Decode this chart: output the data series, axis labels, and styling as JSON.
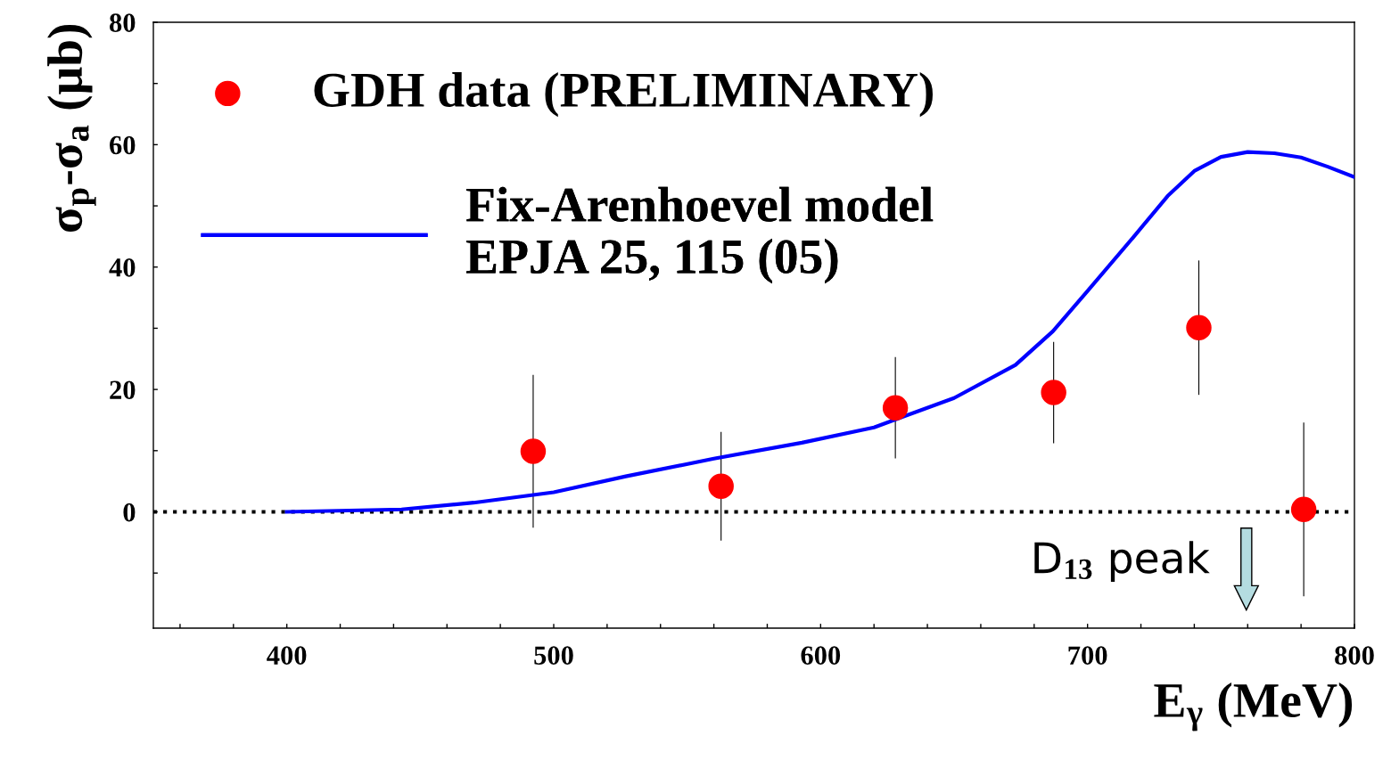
{
  "chart_data": {
    "type": "scatter",
    "xlabel": "E$_{γ}$ (MeV)",
    "ylabel": "σ$_{p}$-σ$_{a}$ (μb)",
    "xlim": [
      350,
      800
    ],
    "ylim": [
      -19,
      80
    ],
    "xticks": [
      {
        "value": 360,
        "label": null
      },
      {
        "value": 380,
        "label": null
      },
      400,
      {
        "value": 420,
        "label": null
      },
      {
        "value": 440,
        "label": null
      },
      {
        "value": 460,
        "label": null
      },
      {
        "value": 480,
        "label": null
      },
      500,
      {
        "value": 520,
        "label": null
      },
      {
        "value": 540,
        "label": null
      },
      {
        "value": 560,
        "label": null
      },
      {
        "value": 580,
        "label": null
      },
      600,
      {
        "value": 620,
        "label": null
      },
      {
        "value": 640,
        "label": null
      },
      {
        "value": 660,
        "label": null
      },
      {
        "value": 680,
        "label": null
      },
      700,
      {
        "value": 720,
        "label": null
      },
      {
        "value": 740,
        "label": null
      },
      {
        "value": 760,
        "label": null
      },
      {
        "value": 780,
        "label": null
      },
      800
    ],
    "yticks": [
      {
        "value": -10,
        "label": null
      },
      0,
      {
        "value": 10,
        "label": null
      },
      20,
      {
        "value": 30,
        "label": null
      },
      40,
      {
        "value": 50,
        "label": null
      },
      60,
      {
        "value": 70,
        "label": null
      },
      80
    ],
    "series": [
      {
        "name": "GDH data (PRELIMINARY)",
        "color": "#ff0000",
        "marker": "circle",
        "x": [
          492.3,
          562.7,
          628,
          687.3,
          741.7,
          781
        ],
        "values": [
          9.9,
          4.2,
          17.0,
          19.5,
          30.1,
          0.4
        ],
        "errors": [
          12.4,
          8.8,
          8.2,
          8.2,
          10.9,
          14.1
        ]
      },
      {
        "name": "Fix-Arenhoevel model\nEPJA 25, 115 (05)",
        "type": "line",
        "color": "#0000ff",
        "line_style": "solid",
        "x": [
          400,
          443,
          470,
          500,
          527,
          560,
          593,
          620,
          650,
          673,
          687,
          700,
          717,
          730,
          740,
          750,
          760,
          770,
          780,
          790,
          800
        ],
        "values": [
          0,
          0.4,
          1.5,
          3.2,
          5.8,
          8.7,
          11.3,
          13.8,
          18.6,
          24,
          29.5,
          36.1,
          44.8,
          51.6,
          55.7,
          58,
          58.8,
          58.6,
          57.9,
          56.4,
          54.7
        ]
      }
    ],
    "ref_lines": [
      {
        "axis": "y",
        "value": 0,
        "color": "#000000",
        "line_style": "dotted"
      }
    ],
    "annotations": [
      "D$_{13}$ peak"
    ],
    "legend": "top left",
    "grid": false
  }
}
